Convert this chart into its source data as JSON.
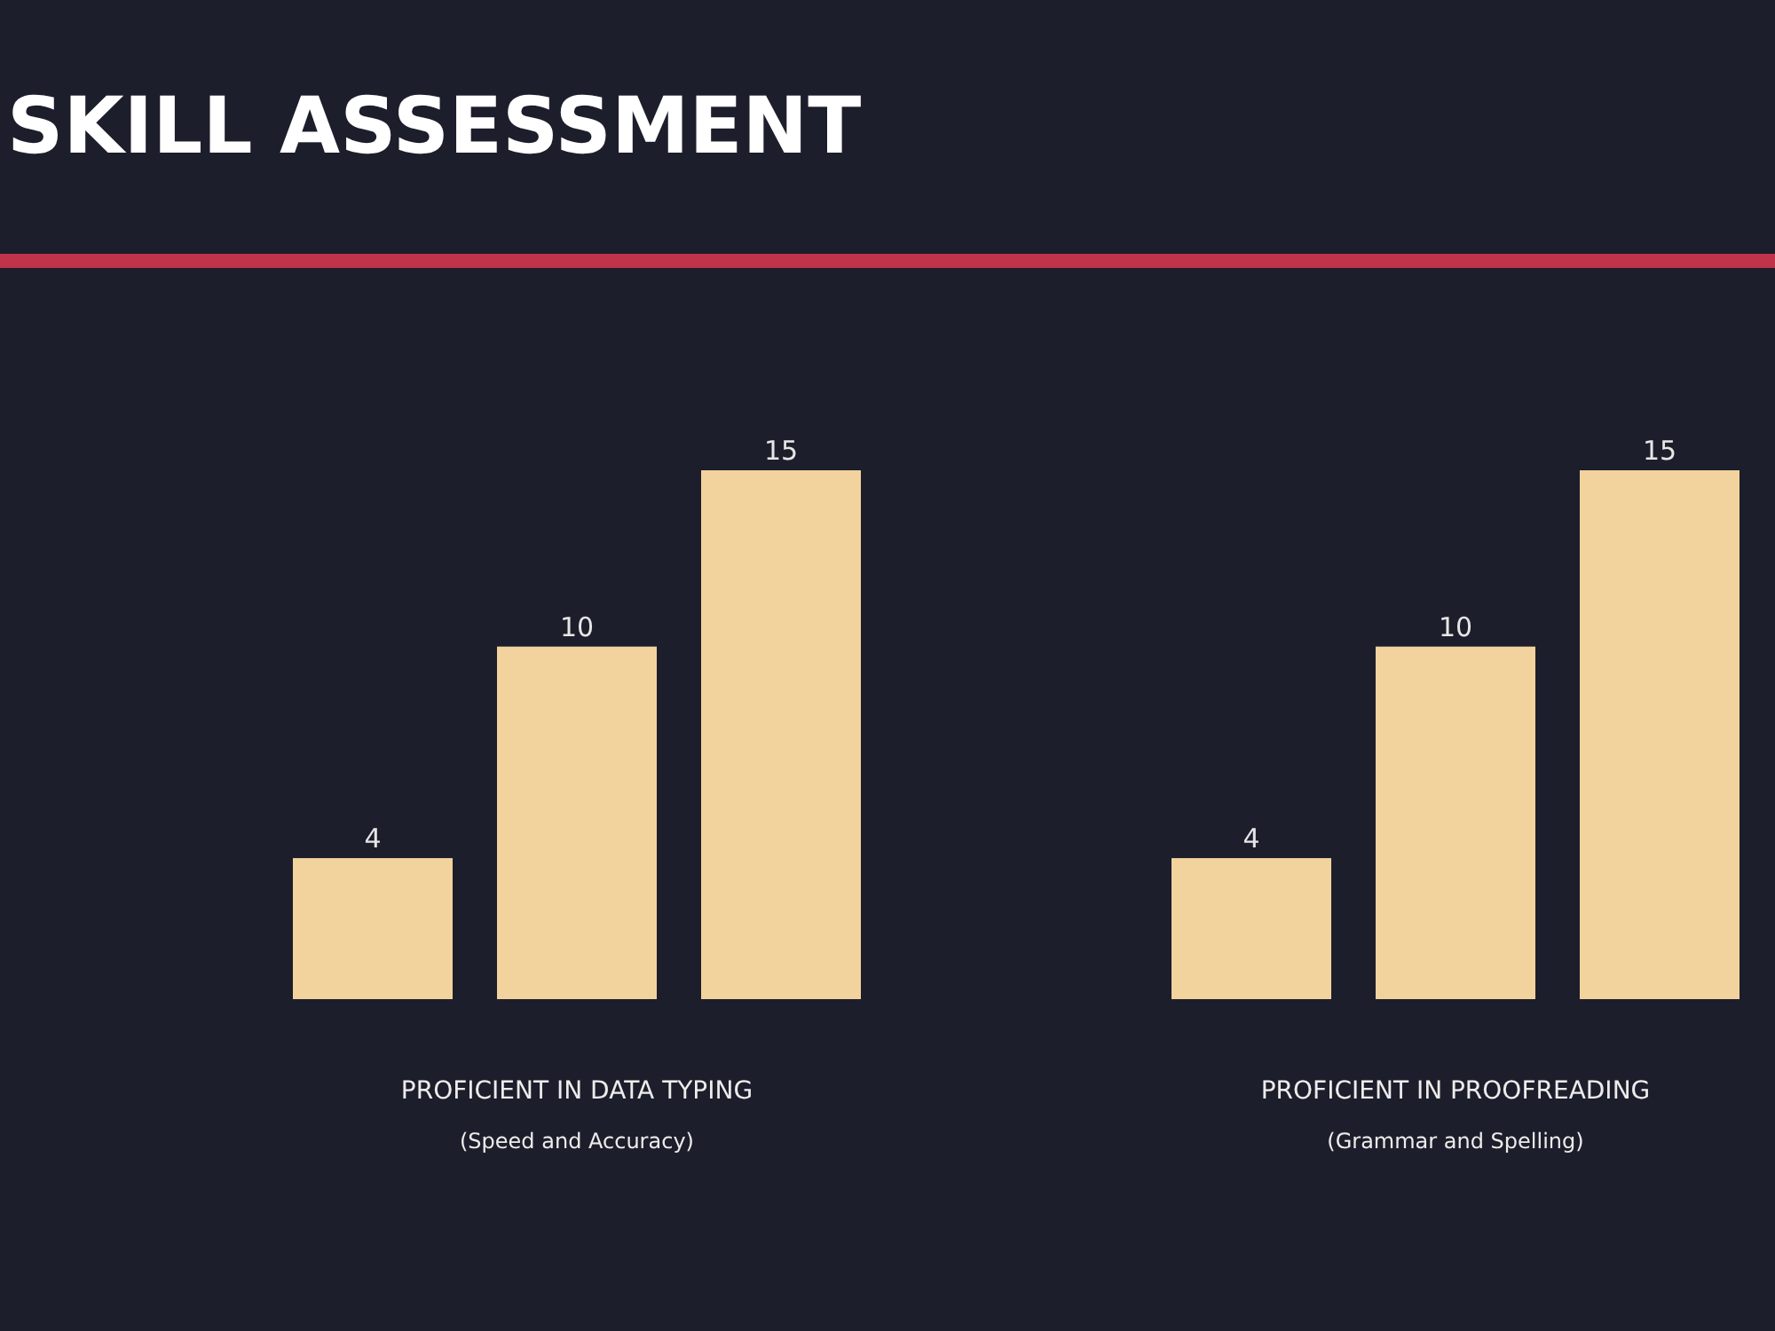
{
  "chart_data": [
    {
      "type": "bar",
      "title": "SKILL ASSESSMENT",
      "categories": [
        null,
        null,
        null
      ],
      "values": [
        4,
        10,
        15
      ],
      "color": "#f2d39e",
      "data_labels": true,
      "xlabel": "PROFICIENT IN DATA TYPING",
      "annotations": [
        "(Speed and Accuracy)"
      ]
    },
    {
      "type": "bar",
      "categories": [
        null,
        null,
        null
      ],
      "values": [
        4,
        10,
        15
      ],
      "color": "#f2d39e",
      "data_labels": true,
      "xlabel": "PROFICIENT IN PROOFREADING",
      "annotations": [
        "(Grammar and Spelling)"
      ]
    }
  ]
}
